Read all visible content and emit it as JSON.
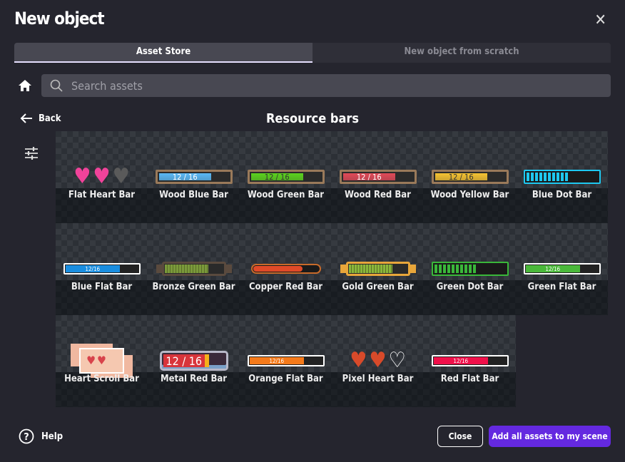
{
  "dialog": {
    "title": "New object"
  },
  "tabs": [
    {
      "label": "Asset Store",
      "active": true
    },
    {
      "label": "New object from scratch",
      "active": false
    }
  ],
  "search": {
    "placeholder": "Search assets",
    "value": ""
  },
  "nav": {
    "back_label": "Back",
    "section_title": "Resource bars"
  },
  "assets": [
    {
      "name": "Flat Heart Bar",
      "kind": "hearts",
      "colors": [
        "#f0439a",
        "#f0439a",
        "#5a5a5a"
      ]
    },
    {
      "name": "Wood Blue Bar",
      "kind": "wood",
      "fill": "#5ab8f5",
      "text": "12 / 16",
      "value": 0.75
    },
    {
      "name": "Wood Green Bar",
      "kind": "wood",
      "fill": "#5bd21e",
      "text": "12 / 16",
      "value": 0.75
    },
    {
      "name": "Wood Red Bar",
      "kind": "wood",
      "fill": "#e04a58",
      "text": "12 / 16",
      "value": 0.75
    },
    {
      "name": "Wood Yellow Bar",
      "kind": "wood",
      "fill": "#f5c232",
      "text": "12 / 16",
      "value": 0.75
    },
    {
      "name": "Blue Dot Bar",
      "kind": "dots",
      "fill": "#1ec8f0",
      "value": 0.6
    },
    {
      "name": "Blue Flat Bar",
      "kind": "flat",
      "fill": "#1a8ee0",
      "text": "12/16",
      "value": 0.75
    },
    {
      "name": "Bronze Green Bar",
      "kind": "ornate",
      "fill": "#7a9a3a",
      "frame": "#5a4a3e",
      "value": 0.75
    },
    {
      "name": "Copper Red Bar",
      "kind": "capsule",
      "fill": "#e04a28",
      "frame": "#c86a2a",
      "value": 0.75
    },
    {
      "name": "Gold Green Bar",
      "kind": "ornate",
      "fill": "#8ab83a",
      "frame": "#e8a63a",
      "value": 0.75
    },
    {
      "name": "Green Dot Bar",
      "kind": "dots",
      "fill": "#3ab83a",
      "value": 0.6
    },
    {
      "name": "Green Flat Bar",
      "kind": "flat",
      "fill": "#4ab83a",
      "text": "12/16",
      "value": 0.75
    },
    {
      "name": "Heart Scroll Bar",
      "kind": "scroll",
      "colors": [
        "#d8434b",
        "#d8434b",
        "#f5c8b0"
      ]
    },
    {
      "name": "Metal Red Bar",
      "kind": "metal",
      "fill": "#d8343a",
      "text": "12 / 16",
      "value": 0.75
    },
    {
      "name": "Orange Flat Bar",
      "kind": "flat",
      "fill": "#f57a1a",
      "text": "12/16",
      "value": 0.75
    },
    {
      "name": "Pixel Heart Bar",
      "kind": "pixelhearts",
      "colors": [
        "#d84a2a",
        "#d84a2a",
        "#1a1a1a"
      ]
    },
    {
      "name": "Red Flat Bar",
      "kind": "flat",
      "fill": "#f0104a",
      "text": "12/16",
      "value": 0.75
    }
  ],
  "footer": {
    "help_label": "Help",
    "close_label": "Close",
    "add_label": "Add all assets to my scene"
  },
  "colors": {
    "accent": "#6429e0",
    "background": "#25252e"
  }
}
